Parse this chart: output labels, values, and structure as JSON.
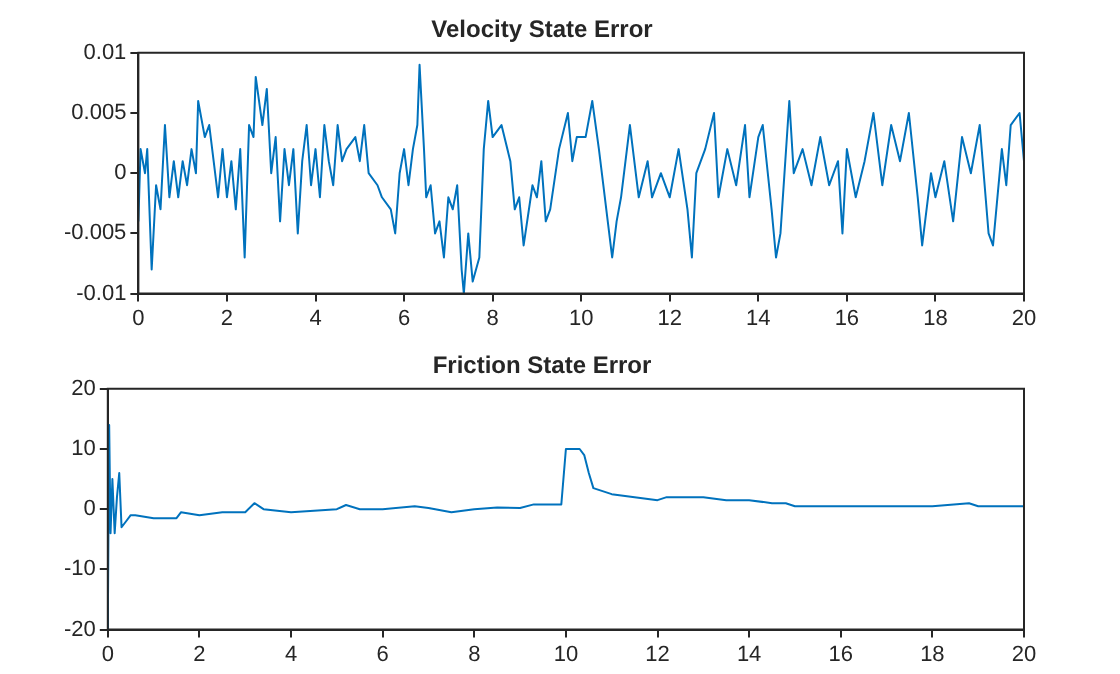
{
  "chart_data": [
    {
      "type": "line",
      "title": "Velocity State Error",
      "xlim": [
        0,
        20
      ],
      "xticks": [
        0,
        2,
        4,
        6,
        8,
        10,
        12,
        14,
        16,
        18,
        20
      ],
      "ylim": [
        -0.01,
        0.01
      ],
      "yticks": [
        -0.01,
        -0.005,
        0,
        0.005,
        0.01
      ],
      "grid": false,
      "legend": false,
      "x": [
        0,
        0.05,
        0.15,
        0.2,
        0.3,
        0.4,
        0.5,
        0.6,
        0.7,
        0.8,
        0.9,
        1.0,
        1.1,
        1.2,
        1.3,
        1.35,
        1.5,
        1.6,
        1.7,
        1.8,
        1.9,
        2.0,
        2.1,
        2.2,
        2.3,
        2.4,
        2.5,
        2.6,
        2.65,
        2.8,
        2.9,
        3.0,
        3.1,
        3.2,
        3.3,
        3.4,
        3.5,
        3.6,
        3.7,
        3.8,
        3.9,
        4.0,
        4.1,
        4.2,
        4.3,
        4.4,
        4.5,
        4.6,
        4.7,
        4.9,
        5.0,
        5.1,
        5.2,
        5.4,
        5.5,
        5.7,
        5.8,
        5.9,
        6.0,
        6.1,
        6.2,
        6.3,
        6.35,
        6.45,
        6.5,
        6.6,
        6.7,
        6.8,
        6.9,
        7.0,
        7.1,
        7.2,
        7.3,
        7.35,
        7.45,
        7.55,
        7.7,
        7.8,
        7.9,
        8.0,
        8.2,
        8.4,
        8.5,
        8.6,
        8.7,
        8.9,
        9.0,
        9.1,
        9.2,
        9.3,
        9.5,
        9.7,
        9.8,
        9.9,
        10.1,
        10.25,
        10.4,
        10.5,
        10.6,
        10.7,
        10.8,
        10.9,
        11.1,
        11.3,
        11.5,
        11.6,
        11.8,
        12.0,
        12.2,
        12.4,
        12.5,
        12.6,
        12.8,
        13.0,
        13.1,
        13.3,
        13.5,
        13.7,
        13.8,
        14.0,
        14.1,
        14.3,
        14.4,
        14.5,
        14.7,
        14.8,
        15.0,
        15.2,
        15.4,
        15.6,
        15.8,
        15.9,
        16.0,
        16.2,
        16.4,
        16.6,
        16.8,
        17.0,
        17.2,
        17.4,
        17.6,
        17.7,
        17.9,
        18.0,
        18.2,
        18.4,
        18.6,
        18.8,
        19.0,
        19.2,
        19.3,
        19.5,
        19.6,
        19.7,
        19.9,
        20.0
      ],
      "series": [
        {
          "color": "#0072bd",
          "values": [
            -0.004,
            0.002,
            0.0,
            0.002,
            -0.008,
            -0.001,
            -0.003,
            0.004,
            -0.002,
            0.001,
            -0.002,
            0.001,
            -0.001,
            0.002,
            0.0,
            0.006,
            0.003,
            0.004,
            0.001,
            -0.002,
            0.002,
            -0.002,
            0.001,
            -0.003,
            0.002,
            -0.007,
            0.004,
            0.003,
            0.008,
            0.004,
            0.007,
            0.0,
            0.003,
            -0.004,
            0.002,
            -0.001,
            0.002,
            -0.005,
            0.001,
            0.004,
            -0.001,
            0.002,
            -0.002,
            0.004,
            0.001,
            -0.001,
            0.004,
            0.001,
            0.002,
            0.003,
            0.001,
            0.004,
            0.0,
            -0.001,
            -0.002,
            -0.003,
            -0.005,
            0.0,
            0.002,
            -0.001,
            0.002,
            0.004,
            0.009,
            0.002,
            -0.002,
            -0.001,
            -0.005,
            -0.004,
            -0.007,
            -0.002,
            -0.003,
            -0.001,
            -0.008,
            -0.01,
            -0.005,
            -0.009,
            -0.007,
            0.002,
            0.006,
            0.003,
            0.004,
            0.001,
            -0.003,
            -0.002,
            -0.006,
            -0.001,
            -0.002,
            0.001,
            -0.004,
            -0.003,
            0.002,
            0.005,
            0.001,
            0.003,
            0.003,
            0.006,
            0.002,
            -0.001,
            -0.004,
            -0.007,
            -0.004,
            -0.002,
            0.004,
            -0.002,
            0.001,
            -0.002,
            0.0,
            -0.002,
            0.002,
            -0.003,
            -0.007,
            0.0,
            0.002,
            0.005,
            -0.002,
            0.002,
            -0.001,
            0.004,
            -0.002,
            0.003,
            0.004,
            -0.003,
            -0.007,
            -0.005,
            0.006,
            0.0,
            0.002,
            -0.001,
            0.003,
            -0.001,
            0.001,
            -0.005,
            0.002,
            -0.002,
            0.001,
            0.005,
            -0.001,
            0.004,
            0.001,
            0.005,
            -0.002,
            -0.006,
            0.0,
            -0.002,
            0.001,
            -0.004,
            0.003,
            0.0,
            0.004,
            -0.005,
            -0.006,
            0.002,
            -0.001,
            0.004,
            0.005,
            0.001
          ]
        }
      ]
    },
    {
      "type": "line",
      "title": "Friction State Error",
      "xlim": [
        0,
        20
      ],
      "xticks": [
        0,
        2,
        4,
        6,
        8,
        10,
        12,
        14,
        16,
        18,
        20
      ],
      "ylim": [
        -20,
        20
      ],
      "yticks": [
        -20,
        -10,
        0,
        10,
        20
      ],
      "grid": false,
      "legend": false,
      "x": [
        0,
        0.03,
        0.06,
        0.1,
        0.15,
        0.2,
        0.25,
        0.3,
        0.4,
        0.5,
        0.6,
        1.0,
        1.5,
        1.6,
        2.0,
        2.5,
        3.0,
        3.2,
        3.4,
        4.0,
        5.0,
        5.2,
        5.5,
        6.0,
        6.7,
        7.0,
        7.5,
        8.0,
        8.5,
        9.0,
        9.3,
        9.9,
        10.0,
        10.3,
        10.4,
        10.5,
        10.6,
        11.0,
        12.0,
        12.2,
        13.0,
        13.5,
        14.0,
        14.5,
        14.8,
        15.0,
        16.0,
        17.0,
        18.0,
        18.8,
        19.0,
        20.0
      ],
      "series": [
        {
          "color": "#0072bd",
          "values": [
            -20,
            14,
            -4,
            5,
            -4,
            2,
            6,
            -3,
            -2,
            -1,
            -1,
            -1.5,
            -1.5,
            -0.5,
            -1,
            -0.5,
            -0.5,
            1,
            0,
            -0.5,
            0,
            0.7,
            0,
            0,
            0.5,
            0.2,
            -0.5,
            0,
            0.3,
            0.2,
            0.8,
            0.8,
            10,
            10,
            9,
            6,
            3.5,
            2.5,
            1.5,
            2,
            2,
            1.5,
            1.5,
            1,
            1,
            0.5,
            0.5,
            0.5,
            0.5,
            1,
            0.5,
            0.5
          ]
        }
      ]
    }
  ]
}
